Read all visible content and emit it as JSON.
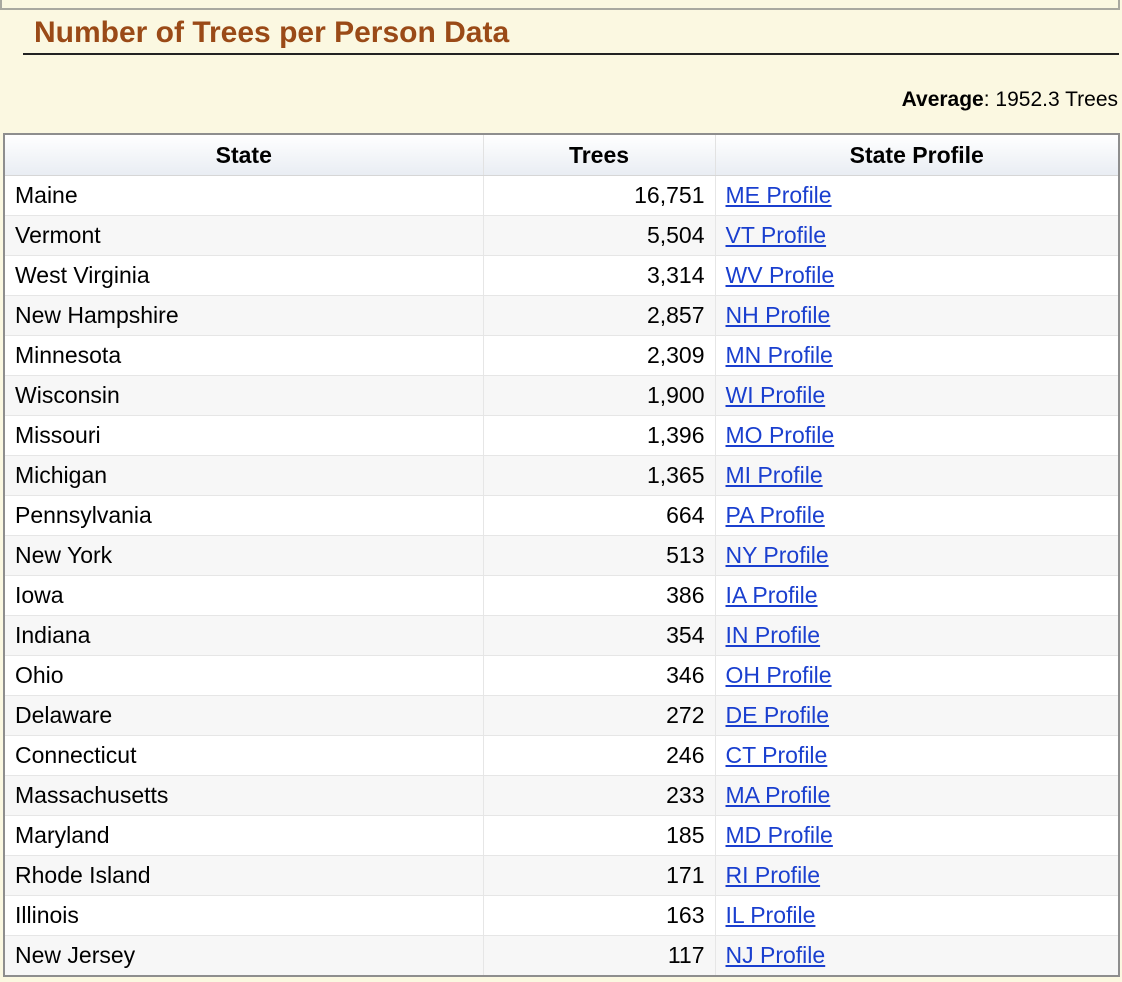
{
  "section": {
    "title": "Number of Trees per Person Data"
  },
  "average": {
    "label": "Average",
    "value": "1952.3 Trees"
  },
  "table": {
    "headers": {
      "state": "State",
      "trees": "Trees",
      "profile": "State Profile"
    },
    "rows": [
      {
        "state": "Maine",
        "trees": "16,751",
        "profile": "ME Profile"
      },
      {
        "state": "Vermont",
        "trees": "5,504",
        "profile": "VT Profile"
      },
      {
        "state": "West Virginia",
        "trees": "3,314",
        "profile": "WV Profile"
      },
      {
        "state": "New Hampshire",
        "trees": "2,857",
        "profile": "NH Profile"
      },
      {
        "state": "Minnesota",
        "trees": "2,309",
        "profile": "MN Profile"
      },
      {
        "state": "Wisconsin",
        "trees": "1,900",
        "profile": "WI Profile"
      },
      {
        "state": "Missouri",
        "trees": "1,396",
        "profile": "MO Profile"
      },
      {
        "state": "Michigan",
        "trees": "1,365",
        "profile": "MI Profile"
      },
      {
        "state": "Pennsylvania",
        "trees": "664",
        "profile": "PA Profile"
      },
      {
        "state": "New York",
        "trees": "513",
        "profile": "NY Profile"
      },
      {
        "state": "Iowa",
        "trees": "386",
        "profile": "IA Profile"
      },
      {
        "state": "Indiana",
        "trees": "354",
        "profile": "IN Profile"
      },
      {
        "state": "Ohio",
        "trees": "346",
        "profile": "OH Profile"
      },
      {
        "state": "Delaware",
        "trees": "272",
        "profile": "DE Profile"
      },
      {
        "state": "Connecticut",
        "trees": "246",
        "profile": "CT Profile"
      },
      {
        "state": "Massachusetts",
        "trees": "233",
        "profile": "MA Profile"
      },
      {
        "state": "Maryland",
        "trees": "185",
        "profile": "MD Profile"
      },
      {
        "state": "Rhode Island",
        "trees": "171",
        "profile": "RI Profile"
      },
      {
        "state": "Illinois",
        "trees": "163",
        "profile": "IL Profile"
      },
      {
        "state": "New Jersey",
        "trees": "117",
        "profile": "NJ Profile"
      }
    ]
  },
  "colors": {
    "page_background": "#fbf8e1",
    "title": "#9a4a17",
    "link": "#1a3fcf"
  }
}
